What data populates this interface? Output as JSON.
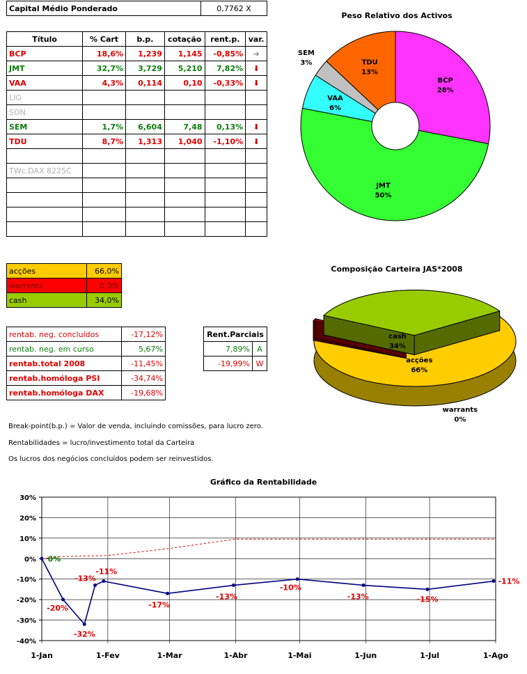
{
  "capital": {
    "label": "Capital Médio Ponderado",
    "value": "0,7762 X"
  },
  "assets_table": {
    "headers": [
      "Título",
      "% Cart",
      "b.p.",
      "cotação",
      "rent.p.",
      "var."
    ],
    "rows": [
      {
        "t": "BCP",
        "pct": "18,6%",
        "bp": "1,239",
        "cot": "1,145",
        "rent": "-0,85%",
        "var": "➔",
        "color": "red"
      },
      {
        "t": "JMT",
        "pct": "32,7%",
        "bp": "3,729",
        "cot": "5,210",
        "rent": "7,82%",
        "var": "⬇",
        "color": "green"
      },
      {
        "t": "VAA",
        "pct": "4,3%",
        "bp": "0,114",
        "cot": "0,10",
        "rent": "-0,33%",
        "var": "⬇",
        "color": "red"
      },
      {
        "t": "LIG",
        "pct": "",
        "bp": "",
        "cot": "",
        "rent": "",
        "var": "",
        "color": "grey"
      },
      {
        "t": "SON",
        "pct": "",
        "bp": "",
        "cot": "",
        "rent": "",
        "var": "",
        "color": "grey"
      },
      {
        "t": "SEM",
        "pct": "1,7%",
        "bp": "6,604",
        "cot": "7,48",
        "rent": "0,13%",
        "var": "⬇",
        "color": "green"
      },
      {
        "t": "TDU",
        "pct": "8,7%",
        "bp": "1,313",
        "cot": "1,040",
        "rent": "-1,10%",
        "var": "⬇",
        "color": "red"
      },
      {
        "t": "",
        "pct": "",
        "bp": "",
        "cot": "",
        "rent": "",
        "var": "",
        "color": "grey"
      },
      {
        "t": "TWc.DAX 8225C",
        "pct": "",
        "bp": "",
        "cot": "",
        "rent": "",
        "var": "",
        "color": "grey"
      },
      {
        "t": "",
        "pct": "",
        "bp": "",
        "cot": "",
        "rent": "",
        "var": "",
        "color": "grey"
      },
      {
        "t": "",
        "pct": "",
        "bp": "",
        "cot": "",
        "rent": "",
        "var": "",
        "color": "grey"
      },
      {
        "t": "",
        "pct": "",
        "bp": "",
        "cot": "",
        "rent": "",
        "var": "",
        "color": "grey"
      },
      {
        "t": "",
        "pct": "",
        "bp": "",
        "cot": "",
        "rent": "",
        "var": "",
        "color": "grey"
      }
    ]
  },
  "composition": [
    {
      "label": "acções",
      "value": "66,0%",
      "bg": "#ffcc00",
      "fg": "#000"
    },
    {
      "label": "warrants",
      "value": "0,0%",
      "bg": "#ff0000",
      "fg": "#800000"
    },
    {
      "label": "cash",
      "value": "34,0%",
      "bg": "#99cc00",
      "fg": "#000"
    }
  ],
  "rentab": [
    {
      "label": "rentab. neg. concluídos",
      "value": "-17,12%",
      "lc": "red",
      "vc": "red",
      "bold": false
    },
    {
      "label": "rentab. neg. em curso",
      "value": "5,67%",
      "lc": "green",
      "vc": "green",
      "bold": false
    },
    {
      "label": "rentab.total 2008",
      "value": "-11,45%",
      "lc": "red",
      "vc": "red",
      "bold": true
    },
    {
      "label": "rentab.homóloga PSI",
      "value": "-34,74%",
      "lc": "red",
      "vc": "red",
      "bold": true
    },
    {
      "label": "rentab.homóloga DAX",
      "value": "-19,68%",
      "lc": "red",
      "vc": "red",
      "bold": true
    }
  ],
  "parciais": {
    "header": "Rent.Parciais",
    "rows": [
      {
        "value": "7,89%",
        "code": "A",
        "color": "green"
      },
      {
        "value": "-19,99%",
        "code": "W",
        "color": "red"
      }
    ]
  },
  "notes": [
    "Break-point(b.p.) = Valor de venda, incluindo comissões, para lucro zero.",
    "Rentabilidades = lucro/investimento total da Carteira",
    "Os lucros dos negócios concluídos podem ser reinvestidos."
  ],
  "chart_data": [
    {
      "type": "pie",
      "title": "Peso Relativo dos Activos",
      "slices": [
        {
          "label": "BCP",
          "value": 28,
          "display": "28%",
          "color": "#ff33ff"
        },
        {
          "label": "JMT",
          "value": 50,
          "display": "50%",
          "color": "#33ff33"
        },
        {
          "label": "VAA",
          "value": 6,
          "display": "6%",
          "color": "#33ffff"
        },
        {
          "label": "SEM",
          "value": 3,
          "display": "3%",
          "color": "#c0c0c0"
        },
        {
          "label": "TDU",
          "value": 13,
          "display": "13%",
          "color": "#ff6600"
        }
      ]
    },
    {
      "type": "pie",
      "title": "Composição Carteira JAS*2008",
      "slices": [
        {
          "label": "acções",
          "value": 66,
          "display": "66%",
          "color": "#ffcc00"
        },
        {
          "label": "warrants",
          "value": 0,
          "display": "0%",
          "color": "#990000"
        },
        {
          "label": "cash",
          "value": 34,
          "display": "34%",
          "color": "#99cc00"
        }
      ]
    },
    {
      "type": "line",
      "title": "Gráfico da Rentabilidade",
      "x_ticks": [
        "1-Jan",
        "1-Fev",
        "1-Mar",
        "1-Abr",
        "1-Mai",
        "1-Jun",
        "1-Jul",
        "1-Ago"
      ],
      "y_ticks": [
        "30%",
        "20%",
        "10%",
        "0%",
        "-10%",
        "-20%",
        "-30%",
        "-40%"
      ],
      "ylim": [
        -40,
        30
      ],
      "series": [
        {
          "color": "#000080",
          "points": [
            {
              "x": "2008-01-01",
              "y": 0,
              "label": "0%"
            },
            {
              "x": "2008-01-11",
              "y": -20,
              "label": "-20%"
            },
            {
              "x": "2008-01-21",
              "y": -32,
              "label": "-32%"
            },
            {
              "x": "2008-01-26",
              "y": -13,
              "label": "-13%"
            },
            {
              "x": "2008-01-30",
              "y": -11,
              "label": "-11%"
            },
            {
              "x": "2008-02-29",
              "y": -17,
              "label": "-17%"
            },
            {
              "x": "2008-03-31",
              "y": -13,
              "label": "-13%"
            },
            {
              "x": "2008-04-30",
              "y": -10,
              "label": "-10%"
            },
            {
              "x": "2008-05-31",
              "y": -13,
              "label": "-13%"
            },
            {
              "x": "2008-06-30",
              "y": -15,
              "label": "-15%"
            },
            {
              "x": "2008-07-31",
              "y": -11,
              "label": "-11%"
            }
          ]
        },
        {
          "color": "#e00000",
          "dashed": true,
          "points": [
            {
              "x": "2008-01-01",
              "y": 0
            },
            {
              "x": "2008-01-11",
              "y": 1
            },
            {
              "x": "2008-02-01",
              "y": 1.5
            },
            {
              "x": "2008-03-01",
              "y": 5
            },
            {
              "x": "2008-04-01",
              "y": 9.5
            },
            {
              "x": "2008-08-01",
              "y": 9.5
            }
          ]
        }
      ]
    }
  ]
}
